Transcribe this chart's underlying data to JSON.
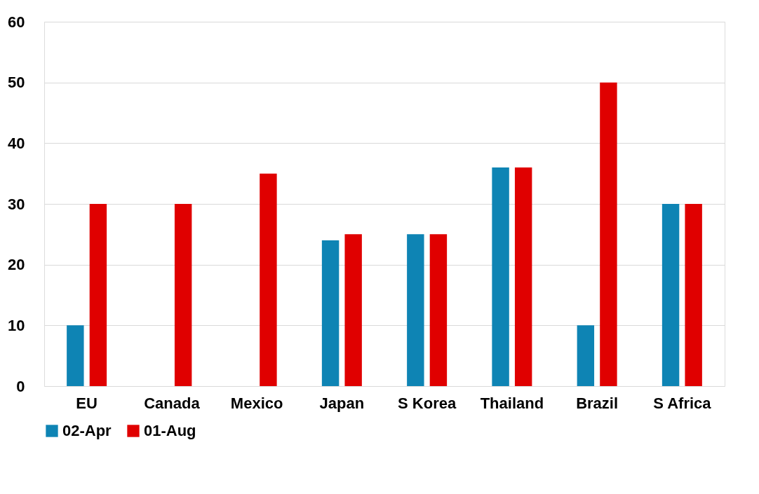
{
  "chart_data": {
    "type": "bar",
    "categories": [
      "EU",
      "Canada",
      "Mexico",
      "Japan",
      "S Korea",
      "Thailand",
      "Brazil",
      "S Africa"
    ],
    "series": [
      {
        "name": "02-Apr",
        "color": "#0e84b4",
        "values": [
          10,
          null,
          null,
          24,
          25,
          36,
          10,
          30
        ]
      },
      {
        "name": "01-Aug",
        "color": "#e00000",
        "values": [
          30,
          30,
          35,
          25,
          25,
          36,
          50,
          30
        ]
      }
    ],
    "ylim": [
      0,
      60
    ],
    "yticks": [
      0,
      10,
      20,
      30,
      40,
      50,
      60
    ],
    "grid": "y",
    "legend": "bottom"
  }
}
